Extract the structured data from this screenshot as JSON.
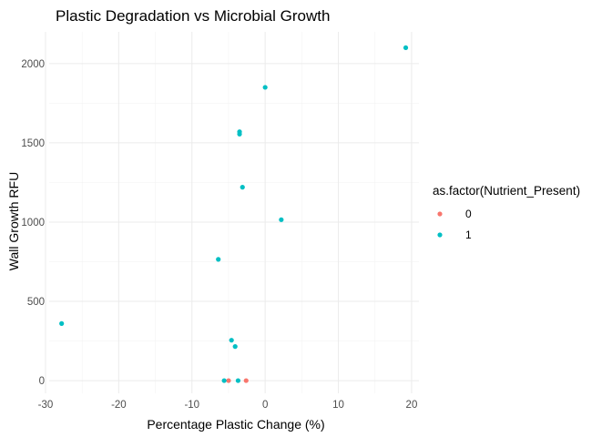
{
  "chart_data": {
    "type": "scatter",
    "title": "Plastic Degradation vs Microbial Growth",
    "xlabel": "Percentage Plastic Change (%)",
    "ylabel": "Wall Growth RFU",
    "xlim": [
      -29.5,
      21
    ],
    "ylim": [
      -80,
      2200
    ],
    "x_ticks": [
      -30,
      -20,
      -10,
      0,
      10,
      20
    ],
    "x_tick_labels": [
      "-30",
      "-20",
      "-10",
      "0",
      "10",
      "20"
    ],
    "y_ticks": [
      0,
      500,
      1000,
      1500,
      2000
    ],
    "y_tick_labels": [
      "0",
      "500",
      "1000",
      "1500",
      "2000"
    ],
    "grid": true,
    "legend": {
      "title": "as.factor(Nutrient_Present)",
      "position": "right",
      "entries": [
        {
          "label": "0",
          "color": "#F8766D"
        },
        {
          "label": "1",
          "color": "#00BFC4"
        }
      ]
    },
    "series": [
      {
        "name": "0",
        "color": "#F8766D",
        "points": [
          {
            "x": -5.0,
            "y": 0
          },
          {
            "x": -2.6,
            "y": 0
          }
        ]
      },
      {
        "name": "1",
        "color": "#00BFC4",
        "points": [
          {
            "x": 19.2,
            "y": 2100
          },
          {
            "x": 0.0,
            "y": 1850
          },
          {
            "x": -3.5,
            "y": 1570
          },
          {
            "x": -3.5,
            "y": 1555
          },
          {
            "x": -3.1,
            "y": 1220
          },
          {
            "x": 2.2,
            "y": 1015
          },
          {
            "x": -6.4,
            "y": 765
          },
          {
            "x": -27.8,
            "y": 360
          },
          {
            "x": -4.6,
            "y": 255
          },
          {
            "x": -4.1,
            "y": 215
          },
          {
            "x": -5.6,
            "y": 0
          },
          {
            "x": -3.7,
            "y": 0
          }
        ]
      }
    ]
  }
}
